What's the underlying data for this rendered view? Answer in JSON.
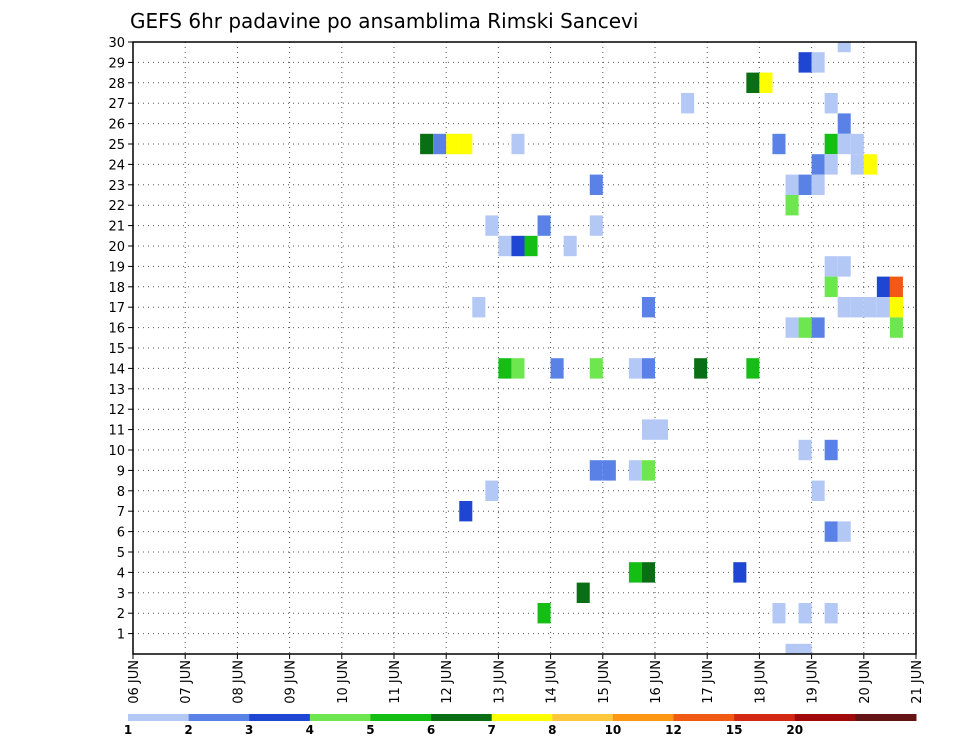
{
  "chart_data": {
    "type": "heatmap",
    "title": "GEFS 6hr padavine po ansamblima Rimski Sancevi",
    "x_tick_labels": [
      "06 JUN",
      "07 JUN",
      "08 JUN",
      "09 JUN",
      "10 JUN",
      "11 JUN",
      "12 JUN",
      "13 JUN",
      "14 JUN",
      "15 JUN",
      "16 JUN",
      "17 JUN",
      "18 JUN",
      "19 JUN",
      "20 JUN",
      "21 JUN"
    ],
    "y_tick_labels": [
      "1",
      "2",
      "3",
      "4",
      "5",
      "6",
      "7",
      "8",
      "9",
      "10",
      "11",
      "12",
      "13",
      "14",
      "15",
      "16",
      "17",
      "18",
      "19",
      "20",
      "21",
      "22",
      "23",
      "24",
      "25",
      "26",
      "27",
      "28",
      "29",
      "30"
    ],
    "xlim": [
      0,
      60
    ],
    "ylim": [
      0,
      30
    ],
    "grid": true,
    "legend": {
      "placement": "bottom",
      "labels": [
        "1",
        "2",
        "3",
        "4",
        "5",
        "6",
        "7",
        "8",
        "10",
        "12",
        "15",
        "20"
      ],
      "colors": [
        "#b4c8f5",
        "#5a82e6",
        "#1e46d2",
        "#6ee650",
        "#14be14",
        "#0a6e14",
        "#ffff00",
        "#ffc83c",
        "#ff9614",
        "#f05a14",
        "#d22814",
        "#a00a0a",
        "#641414"
      ]
    },
    "cells": [
      {
        "x": 54.5,
        "y": 30,
        "v": 1
      },
      {
        "x": 51.5,
        "y": 29,
        "v": 3
      },
      {
        "x": 52.5,
        "y": 29,
        "v": 1
      },
      {
        "x": 47.5,
        "y": 28,
        "v": 6
      },
      {
        "x": 48.5,
        "y": 28,
        "v": 7
      },
      {
        "x": 42.5,
        "y": 27,
        "v": 1
      },
      {
        "x": 53.5,
        "y": 27,
        "v": 1
      },
      {
        "x": 54.5,
        "y": 26,
        "v": 2
      },
      {
        "x": 22.5,
        "y": 25,
        "v": 6
      },
      {
        "x": 23.5,
        "y": 25,
        "v": 2
      },
      {
        "x": 24.5,
        "y": 25,
        "v": 7
      },
      {
        "x": 25.5,
        "y": 25,
        "v": 7
      },
      {
        "x": 29.5,
        "y": 25,
        "v": 1
      },
      {
        "x": 49.5,
        "y": 25,
        "v": 2
      },
      {
        "x": 53.5,
        "y": 25,
        "v": 5
      },
      {
        "x": 54.5,
        "y": 25,
        "v": 1
      },
      {
        "x": 55.5,
        "y": 25,
        "v": 1
      },
      {
        "x": 52.5,
        "y": 24,
        "v": 2
      },
      {
        "x": 53.5,
        "y": 24,
        "v": 1
      },
      {
        "x": 55.5,
        "y": 24,
        "v": 1
      },
      {
        "x": 56.5,
        "y": 24,
        "v": 7
      },
      {
        "x": 35.5,
        "y": 23,
        "v": 2
      },
      {
        "x": 50.5,
        "y": 23,
        "v": 1
      },
      {
        "x": 51.5,
        "y": 23,
        "v": 2
      },
      {
        "x": 52.5,
        "y": 23,
        "v": 1
      },
      {
        "x": 50.5,
        "y": 22,
        "v": 4
      },
      {
        "x": 27.5,
        "y": 21,
        "v": 1
      },
      {
        "x": 31.5,
        "y": 21,
        "v": 2
      },
      {
        "x": 35.5,
        "y": 21,
        "v": 1
      },
      {
        "x": 28.5,
        "y": 20,
        "v": 1
      },
      {
        "x": 29.5,
        "y": 20,
        "v": 3
      },
      {
        "x": 30.5,
        "y": 20,
        "v": 5
      },
      {
        "x": 33.5,
        "y": 20,
        "v": 1
      },
      {
        "x": 53.5,
        "y": 19,
        "v": 1
      },
      {
        "x": 54.5,
        "y": 19,
        "v": 1
      },
      {
        "x": 53.5,
        "y": 18,
        "v": 4
      },
      {
        "x": 57.5,
        "y": 18,
        "v": 3
      },
      {
        "x": 58.5,
        "y": 18,
        "v": 12
      },
      {
        "x": 26.5,
        "y": 17,
        "v": 1
      },
      {
        "x": 39.5,
        "y": 17,
        "v": 2
      },
      {
        "x": 54.5,
        "y": 17,
        "v": 1
      },
      {
        "x": 55.5,
        "y": 17,
        "v": 1
      },
      {
        "x": 56.5,
        "y": 17,
        "v": 1
      },
      {
        "x": 57.5,
        "y": 17,
        "v": 1
      },
      {
        "x": 58.5,
        "y": 17,
        "v": 7
      },
      {
        "x": 50.5,
        "y": 16,
        "v": 1
      },
      {
        "x": 51.5,
        "y": 16,
        "v": 4
      },
      {
        "x": 52.5,
        "y": 16,
        "v": 2
      },
      {
        "x": 58.5,
        "y": 16,
        "v": 4
      },
      {
        "x": 28.5,
        "y": 14,
        "v": 5
      },
      {
        "x": 29.5,
        "y": 14,
        "v": 4
      },
      {
        "x": 32.5,
        "y": 14,
        "v": 2
      },
      {
        "x": 35.5,
        "y": 14,
        "v": 4
      },
      {
        "x": 38.5,
        "y": 14,
        "v": 1
      },
      {
        "x": 39.5,
        "y": 14,
        "v": 2
      },
      {
        "x": 43.5,
        "y": 14,
        "v": 6
      },
      {
        "x": 47.5,
        "y": 14,
        "v": 5
      },
      {
        "x": 39.5,
        "y": 11,
        "v": 1
      },
      {
        "x": 40.5,
        "y": 11,
        "v": 1
      },
      {
        "x": 51.5,
        "y": 10,
        "v": 1
      },
      {
        "x": 53.5,
        "y": 10,
        "v": 2
      },
      {
        "x": 35.5,
        "y": 9,
        "v": 2
      },
      {
        "x": 36.5,
        "y": 9,
        "v": 2
      },
      {
        "x": 38.5,
        "y": 9,
        "v": 1
      },
      {
        "x": 39.5,
        "y": 9,
        "v": 4
      },
      {
        "x": 27.5,
        "y": 8,
        "v": 1
      },
      {
        "x": 52.5,
        "y": 8,
        "v": 1
      },
      {
        "x": 25.5,
        "y": 7,
        "v": 3
      },
      {
        "x": 53.5,
        "y": 6,
        "v": 2
      },
      {
        "x": 54.5,
        "y": 6,
        "v": 1
      },
      {
        "x": 38.5,
        "y": 4,
        "v": 5
      },
      {
        "x": 39.5,
        "y": 4,
        "v": 6
      },
      {
        "x": 46.5,
        "y": 4,
        "v": 3
      },
      {
        "x": 34.5,
        "y": 3,
        "v": 6
      },
      {
        "x": 31.5,
        "y": 2,
        "v": 5
      },
      {
        "x": 49.5,
        "y": 2,
        "v": 1
      },
      {
        "x": 51.5,
        "y": 2,
        "v": 1
      },
      {
        "x": 53.5,
        "y": 2,
        "v": 1
      },
      {
        "x": 50.5,
        "y": 0,
        "v": 1
      },
      {
        "x": 51.5,
        "y": 0,
        "v": 1
      }
    ]
  }
}
